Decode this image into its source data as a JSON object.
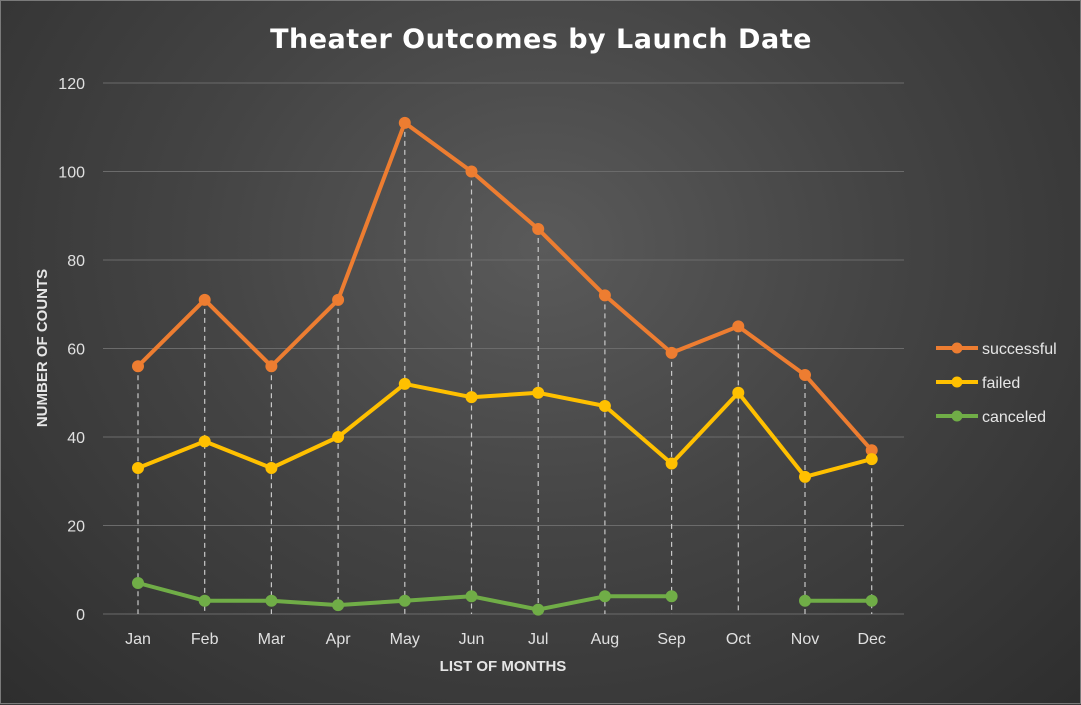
{
  "chart_data": {
    "type": "line",
    "title": "Theater Outcomes by Launch Date",
    "xlabel": "LIST OF MONTHS",
    "ylabel": "NUMBER OF COUNTS",
    "categories": [
      "Jan",
      "Feb",
      "Mar",
      "Apr",
      "May",
      "Jun",
      "Jul",
      "Aug",
      "Sep",
      "Oct",
      "Nov",
      "Dec"
    ],
    "ylim": [
      0,
      120
    ],
    "yticks": [
      0,
      20,
      40,
      60,
      80,
      100,
      120
    ],
    "grid": true,
    "drop_lines": true,
    "legend_position": "right",
    "series": [
      {
        "name": "successful",
        "color": "#ed7d31",
        "values": [
          56,
          71,
          56,
          71,
          111,
          100,
          87,
          72,
          59,
          65,
          54,
          37
        ]
      },
      {
        "name": "failed",
        "color": "#ffc000",
        "values": [
          33,
          39,
          33,
          40,
          52,
          49,
          50,
          47,
          34,
          50,
          31,
          35
        ]
      },
      {
        "name": "canceled",
        "color": "#70ad47",
        "values": [
          7,
          3,
          3,
          2,
          3,
          4,
          1,
          4,
          4,
          null,
          3,
          3
        ]
      }
    ]
  }
}
